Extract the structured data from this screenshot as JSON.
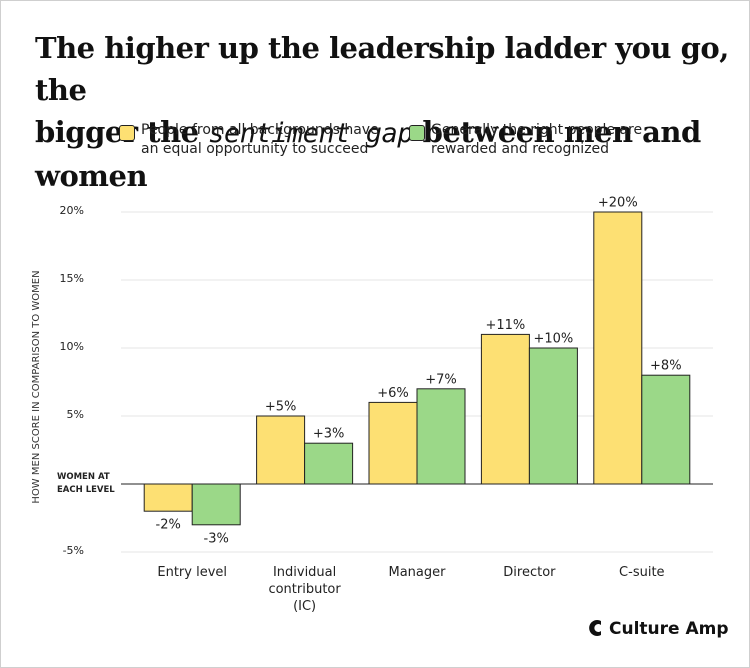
{
  "chart_data": {
    "type": "bar",
    "title": [
      "The higher up the leadership ladder you go, the",
      "bigger the",
      "sentiment gap",
      "between men and women"
    ],
    "y_axis_label": "HOW MEN SCORE IN COMPARISON TO WOMEN",
    "categories": [
      "Entry level",
      "Individual contributor (IC)",
      "Manager",
      "Director",
      "C-suite"
    ],
    "series": [
      {
        "name": "People from all backgrounds have an equal opportunity to succeed",
        "color": "#fde073",
        "values": [
          -2,
          5,
          6,
          11,
          20
        ],
        "value_labels": [
          "-2%",
          "+5%",
          "+6%",
          "+11%",
          "+20%"
        ]
      },
      {
        "name": "Generally the right people are rewarded and recognized",
        "color": "#9bd888",
        "values": [
          -3,
          3,
          7,
          10,
          8
        ],
        "value_labels": [
          "-3%",
          "+3%",
          "+7%",
          "+10%",
          "+8%"
        ]
      }
    ],
    "ylim": [
      -5,
      20
    ],
    "yticks": [
      {
        "value": -5,
        "label": "-5%"
      },
      {
        "value": 0,
        "label": "WOMEN AT EACH LEVEL"
      },
      {
        "value": 5,
        "label": "5%"
      },
      {
        "value": 10,
        "label": "10%"
      },
      {
        "value": 15,
        "label": "15%"
      },
      {
        "value": 20,
        "label": "20%"
      }
    ],
    "grid": true,
    "brand": "Culture Amp"
  }
}
